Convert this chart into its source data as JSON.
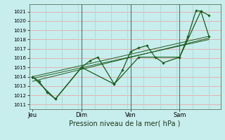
{
  "xlabel": "Pression niveau de la mer( hPa )",
  "bg_color": "#c8eded",
  "plot_bg_color": "#c8eded",
  "hgrid_color": "#e8a8a8",
  "vgrid_color": "#a8d8d8",
  "line_color": "#1a5c1a",
  "yticks": [
    1011,
    1012,
    1013,
    1014,
    1015,
    1016,
    1017,
    1018,
    1019,
    1020,
    1021
  ],
  "ylim": [
    1010.5,
    1021.8
  ],
  "xtick_labels": [
    "Jeu",
    "Dim",
    "Ven",
    "Sam"
  ],
  "xtick_positions": [
    0,
    30,
    60,
    90
  ],
  "xlim": [
    -2,
    115
  ],
  "vlines_x": [
    30,
    60,
    90
  ],
  "series1_x": [
    0,
    4,
    9,
    14,
    30,
    35,
    40,
    50,
    55,
    60,
    65,
    70,
    75,
    80,
    90,
    95,
    100,
    103,
    108
  ],
  "series1_y": [
    1014.0,
    1013.5,
    1012.3,
    1011.6,
    1015.0,
    1015.7,
    1016.1,
    1013.2,
    1014.7,
    1016.7,
    1017.1,
    1017.35,
    1016.1,
    1015.5,
    1016.1,
    1018.3,
    1021.1,
    1021.05,
    1020.6
  ],
  "series2_x": [
    0,
    14,
    30,
    50,
    65,
    90,
    103,
    108
  ],
  "series2_y": [
    1014.0,
    1011.6,
    1015.0,
    1013.2,
    1016.1,
    1016.1,
    1021.05,
    1018.3
  ],
  "trend1_x": [
    0,
    108
  ],
  "trend1_y": [
    1013.5,
    1018.15
  ],
  "trend2_x": [
    0,
    108
  ],
  "trend2_y": [
    1013.8,
    1018.0
  ],
  "trend3_x": [
    0,
    108
  ],
  "trend3_y": [
    1014.0,
    1018.35
  ],
  "xlabel_fontsize": 7,
  "ytick_fontsize": 5,
  "xtick_fontsize": 6
}
